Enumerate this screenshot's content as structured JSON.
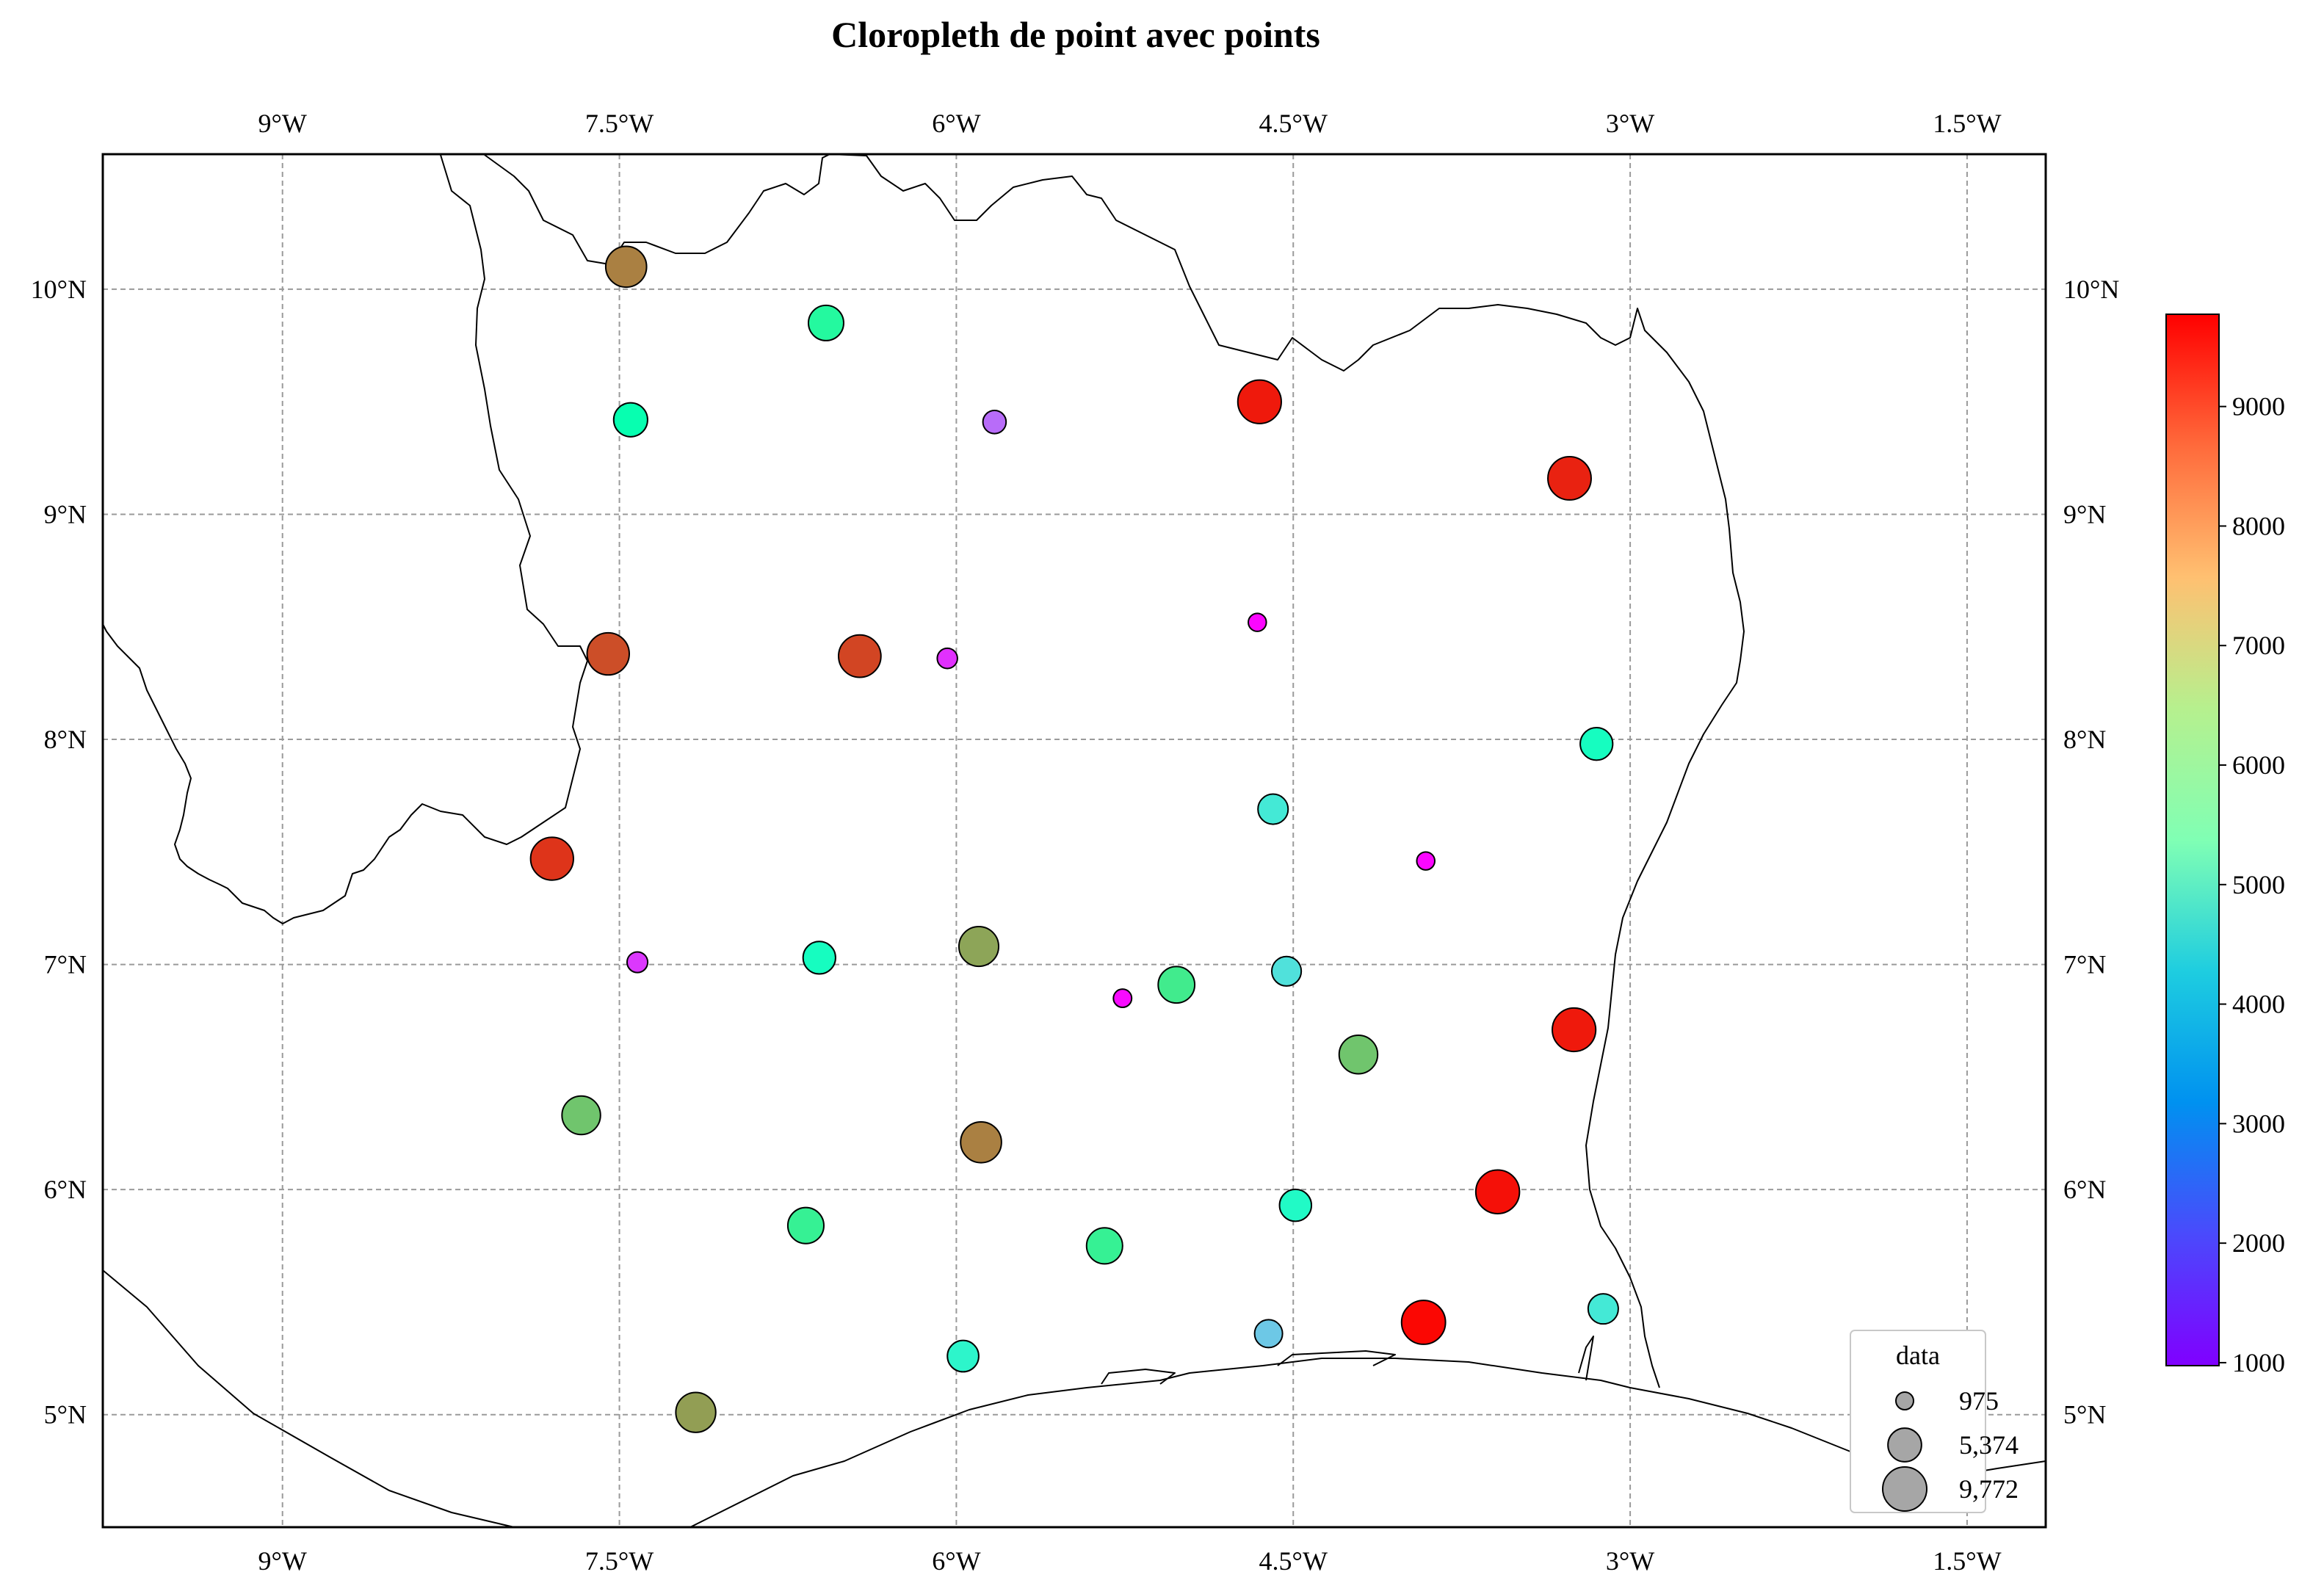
{
  "title": "Cloropleth de point avec points",
  "map": {
    "extent": {
      "lon": [
        -9.8,
        -1.15
      ],
      "lat": [
        4.5,
        10.6
      ]
    },
    "lon_ticks": [
      {
        "value": -9.0,
        "label": "9°W"
      },
      {
        "value": -7.5,
        "label": "7.5°W"
      },
      {
        "value": -6.0,
        "label": "6°W"
      },
      {
        "value": -4.5,
        "label": "4.5°W"
      },
      {
        "value": -3.0,
        "label": "3°W"
      },
      {
        "value": -1.5,
        "label": "1.5°W"
      }
    ],
    "lat_ticks": [
      {
        "value": 10,
        "label": "10°N"
      },
      {
        "value": 9,
        "label": "9°N"
      },
      {
        "value": 8,
        "label": "8°N"
      },
      {
        "value": 7,
        "label": "7°N"
      },
      {
        "value": 6,
        "label": "6°N"
      },
      {
        "value": 5,
        "label": "5°N"
      }
    ],
    "gridlines": true
  },
  "colorbar": {
    "colormap": "rainbow",
    "range": [
      975,
      9772
    ],
    "tick_values": [
      1000,
      2000,
      3000,
      4000,
      5000,
      6000,
      7000,
      8000,
      9000
    ],
    "tick_labels": [
      "1000",
      "2000",
      "3000",
      "4000",
      "5000",
      "6000",
      "7000",
      "8000",
      "9000"
    ]
  },
  "legend": {
    "title": "data",
    "placement": "lower-right",
    "marker_color": "#a6a6a6",
    "entries": [
      {
        "value": 975,
        "label": "975"
      },
      {
        "value": 5374,
        "label": "5,374"
      },
      {
        "value": 9772,
        "label": "9,772"
      }
    ]
  },
  "chart_data": {
    "type": "scatter",
    "title": "Cloropleth de point avec points",
    "x_axis": "longitude",
    "y_axis": "latitude",
    "xlim": [
      -9.8,
      -1.15
    ],
    "ylim": [
      4.5,
      10.6
    ],
    "color_range": [
      975,
      9772
    ],
    "size_range": [
      975,
      9772
    ],
    "points": [
      {
        "lon": -7.47,
        "lat": 10.1,
        "value": 8300
      },
      {
        "lon": -6.58,
        "lat": 9.85,
        "value": 6000
      },
      {
        "lon": -7.45,
        "lat": 9.42,
        "value": 5500
      },
      {
        "lon": -5.83,
        "lat": 9.41,
        "value": 2200
      },
      {
        "lon": -4.65,
        "lat": 9.5,
        "value": 9500
      },
      {
        "lon": -3.27,
        "lat": 9.16,
        "value": 9400
      },
      {
        "lon": -7.55,
        "lat": 8.38,
        "value": 8900
      },
      {
        "lon": -6.43,
        "lat": 8.37,
        "value": 9000
      },
      {
        "lon": -6.04,
        "lat": 8.36,
        "value": 1500
      },
      {
        "lon": -4.66,
        "lat": 8.52,
        "value": 1050
      },
      {
        "lon": -3.15,
        "lat": 7.98,
        "value": 5000
      },
      {
        "lon": -4.59,
        "lat": 7.69,
        "value": 4200
      },
      {
        "lon": -7.8,
        "lat": 7.47,
        "value": 9200
      },
      {
        "lon": -3.91,
        "lat": 7.46,
        "value": 1050
      },
      {
        "lon": -7.42,
        "lat": 7.01,
        "value": 1600
      },
      {
        "lon": -6.61,
        "lat": 7.03,
        "value": 5000
      },
      {
        "lon": -5.9,
        "lat": 7.08,
        "value": 7800
      },
      {
        "lon": -5.26,
        "lat": 6.85,
        "value": 1100
      },
      {
        "lon": -5.02,
        "lat": 6.91,
        "value": 6500
      },
      {
        "lon": -4.53,
        "lat": 6.97,
        "value": 4000
      },
      {
        "lon": -3.25,
        "lat": 6.71,
        "value": 9500
      },
      {
        "lon": -4.21,
        "lat": 6.6,
        "value": 7300
      },
      {
        "lon": -7.67,
        "lat": 6.33,
        "value": 7300
      },
      {
        "lon": -5.89,
        "lat": 6.21,
        "value": 8300
      },
      {
        "lon": -3.59,
        "lat": 5.99,
        "value": 9600
      },
      {
        "lon": -6.67,
        "lat": 5.84,
        "value": 6300
      },
      {
        "lon": -5.34,
        "lat": 5.75,
        "value": 6300
      },
      {
        "lon": -4.49,
        "lat": 5.93,
        "value": 4800
      },
      {
        "lon": -5.97,
        "lat": 5.26,
        "value": 4600
      },
      {
        "lon": -4.61,
        "lat": 5.36,
        "value": 3500
      },
      {
        "lon": -3.12,
        "lat": 5.47,
        "value": 4200
      },
      {
        "lon": -3.92,
        "lat": 5.41,
        "value": 9700
      },
      {
        "lon": -7.16,
        "lat": 5.01,
        "value": 7900
      }
    ]
  }
}
